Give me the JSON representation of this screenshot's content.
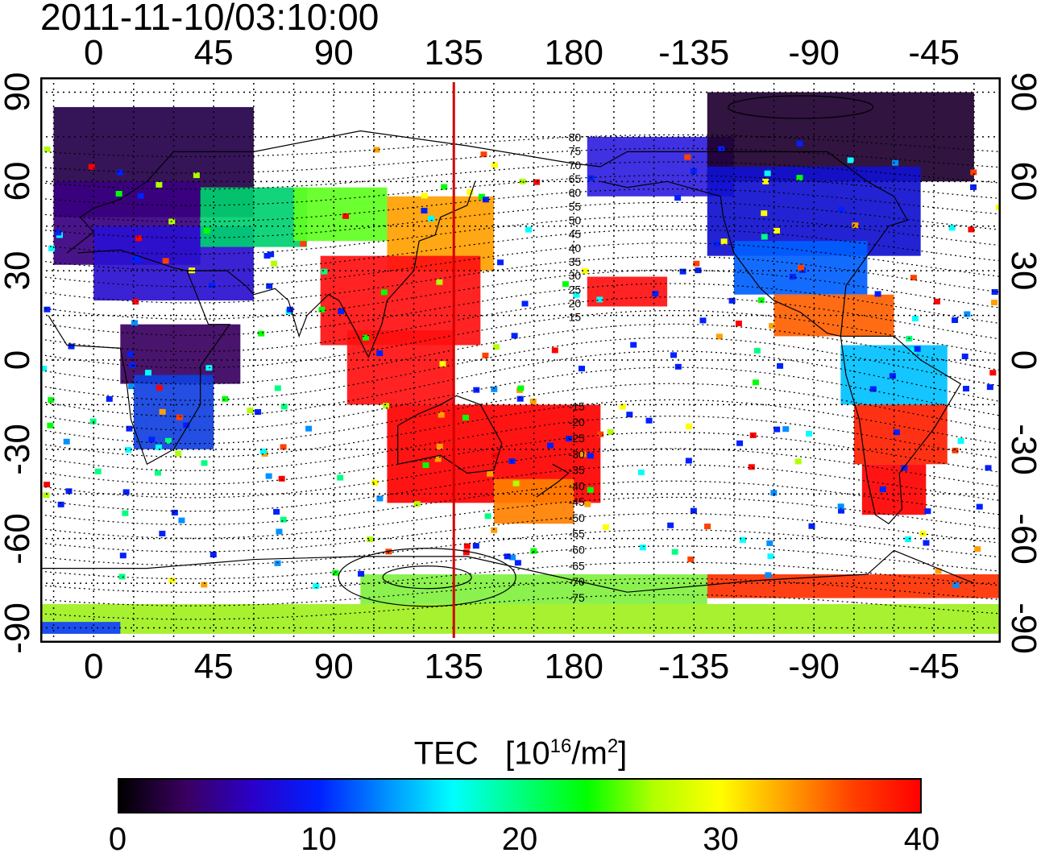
{
  "timestamp": "2011-11-10/03:10:00",
  "x_ticks_top": [
    "0",
    "45",
    "90",
    "135",
    "180",
    "-135",
    "-90",
    "-45"
  ],
  "x_ticks_bottom": [
    "0",
    "45",
    "90",
    "135",
    "180",
    "-135",
    "-90",
    "-45"
  ],
  "y_ticks_left": [
    "90",
    "60",
    "30",
    "0",
    "-30",
    "-60",
    "-90"
  ],
  "y_ticks_right": [
    "90",
    "60",
    "30",
    "0",
    "-30",
    "-60",
    "-90"
  ],
  "x_range_deg": [
    -20,
    340
  ],
  "y_range_deg": [
    -95,
    95
  ],
  "current_longitude_line": 135,
  "contour_labels": [
    "80",
    "75",
    "70",
    "65",
    "60",
    "55",
    "50",
    "45",
    "40",
    "35",
    "30",
    "25",
    "20",
    "15",
    "-15",
    "-20",
    "-25",
    "-30",
    "-35",
    "-40",
    "-45",
    "-50",
    "-55",
    "-60",
    "-65",
    "-70",
    "-75"
  ],
  "colorbar": {
    "title": "TEC",
    "unit_main": "10",
    "unit_exp": "16",
    "unit_mid": "/m",
    "unit_exp2": "2",
    "ticks": [
      "0",
      "10",
      "20",
      "30",
      "40"
    ],
    "range": [
      0,
      40
    ],
    "colors": [
      "#000000",
      "#3a0060",
      "#2a00c8",
      "#0020ff",
      "#0090ff",
      "#00ffff",
      "#00ff80",
      "#00ff00",
      "#b0ff00",
      "#ffff00",
      "#ffa000",
      "#ff4000",
      "#ff0000"
    ]
  },
  "grid": true
}
